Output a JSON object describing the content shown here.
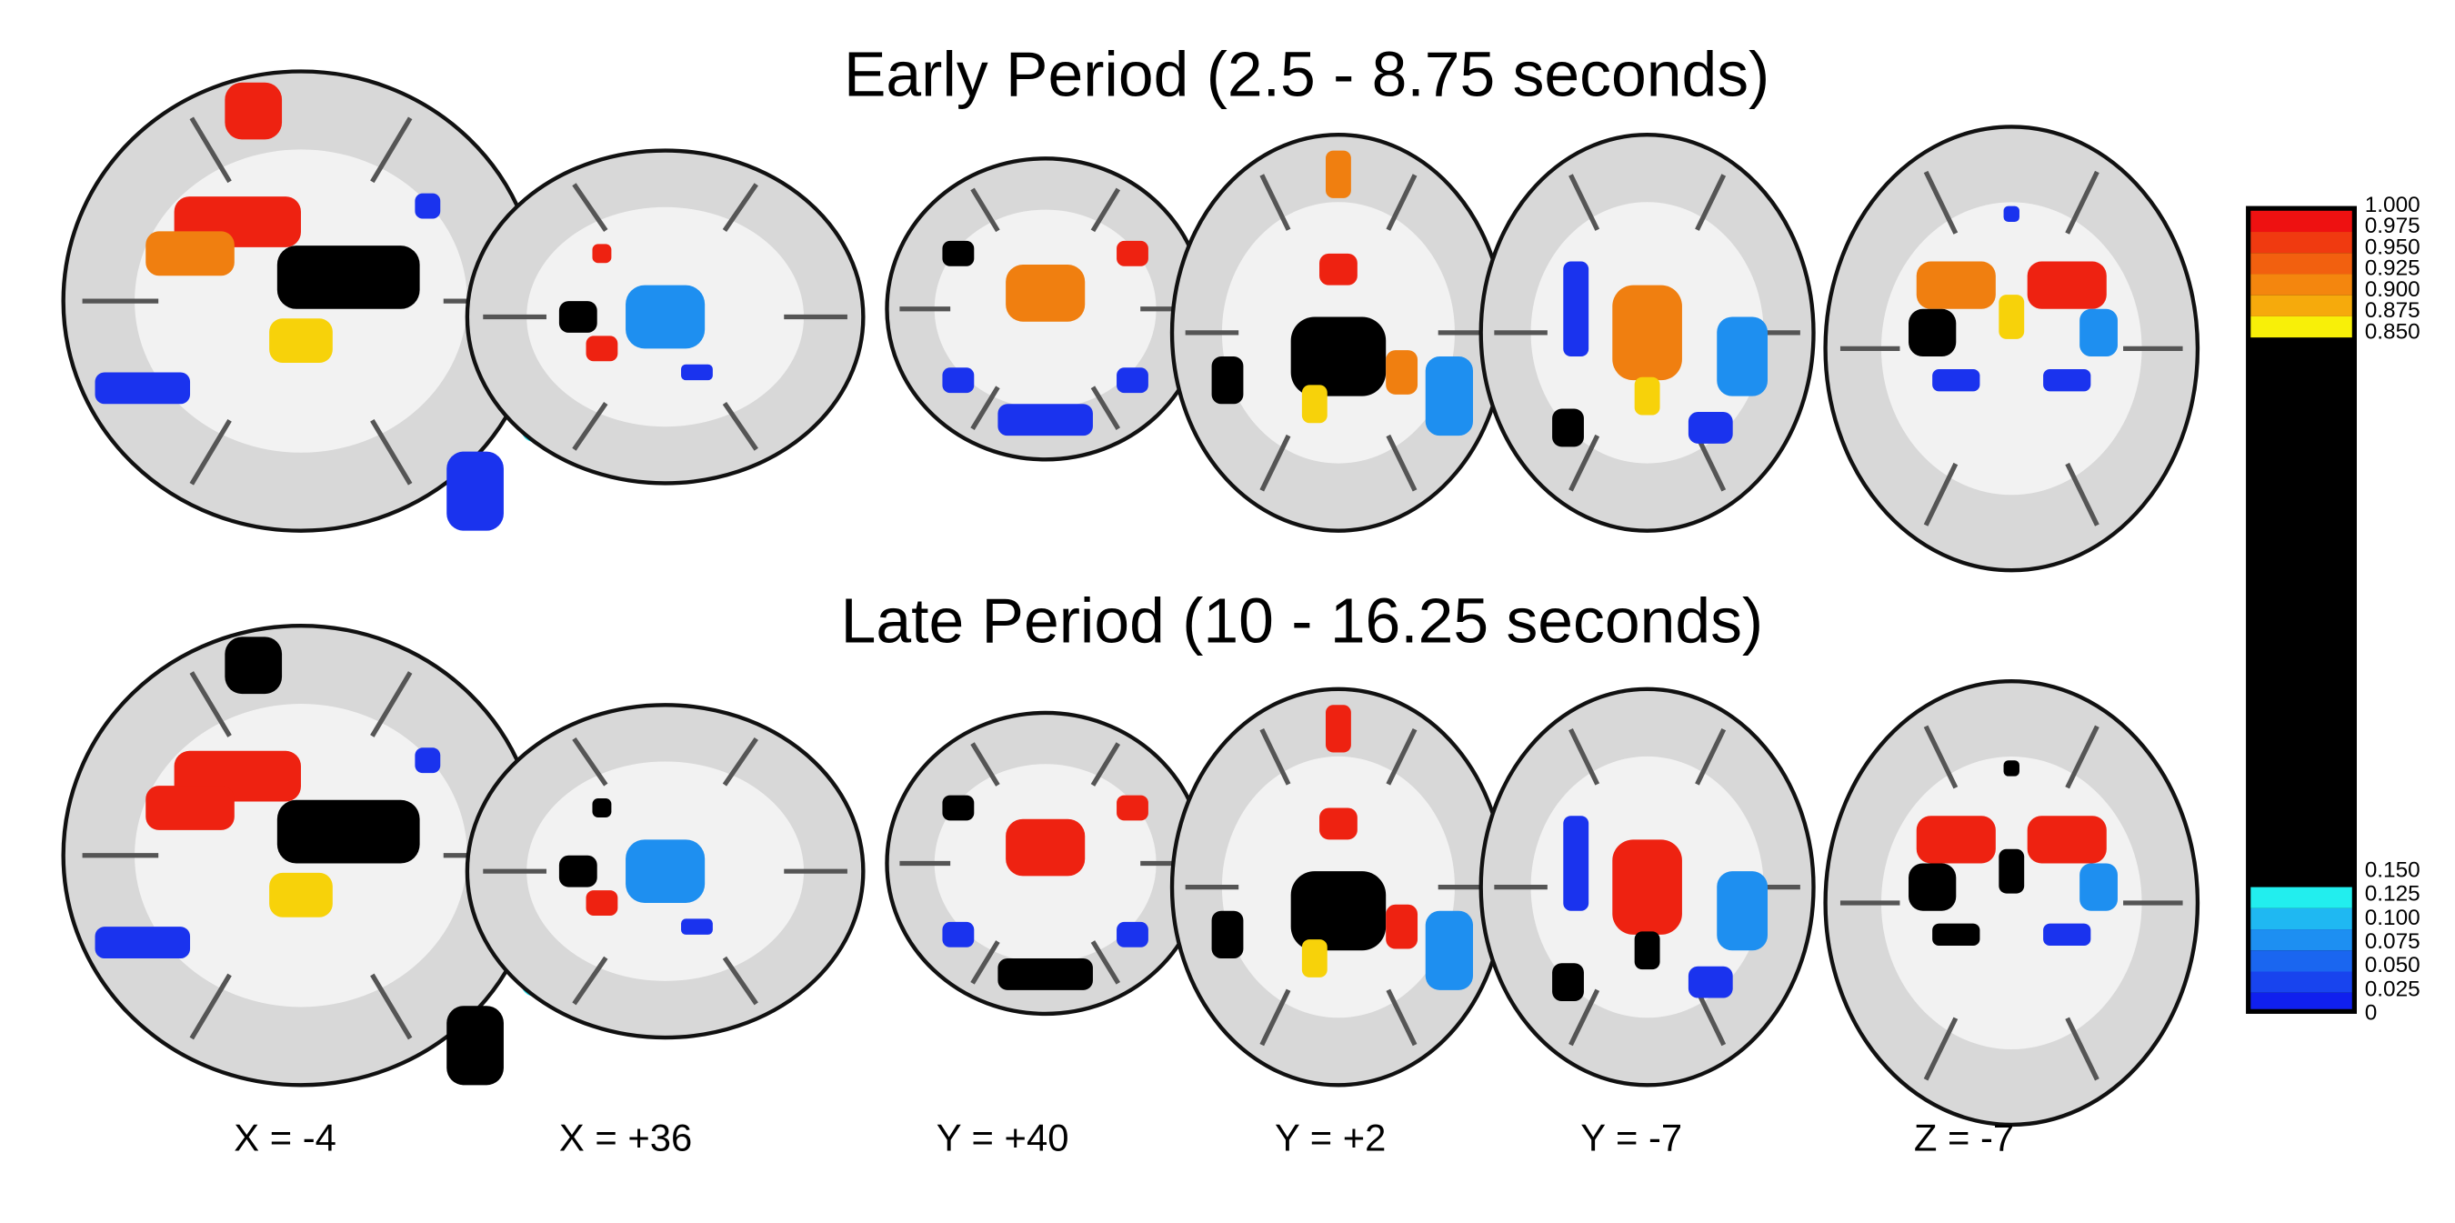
{
  "figure": {
    "rows": [
      "Early Period (2.5 - 8.75 seconds)",
      "Late Period (10 - 16.25 seconds)"
    ],
    "slice_labels": [
      "X = -4",
      "X = +36",
      "Y = +40",
      "Y = +2",
      "Y = -7",
      "Z = -7"
    ],
    "colorbar": {
      "upper_labels": [
        "1.000",
        "0.975",
        "0.950",
        "0.925",
        "0.900",
        "0.875",
        "0.850"
      ],
      "lower_labels": [
        "0.150",
        "0.125",
        "0.100",
        "0.075",
        "0.050",
        "0.025",
        "0"
      ]
    }
  }
}
